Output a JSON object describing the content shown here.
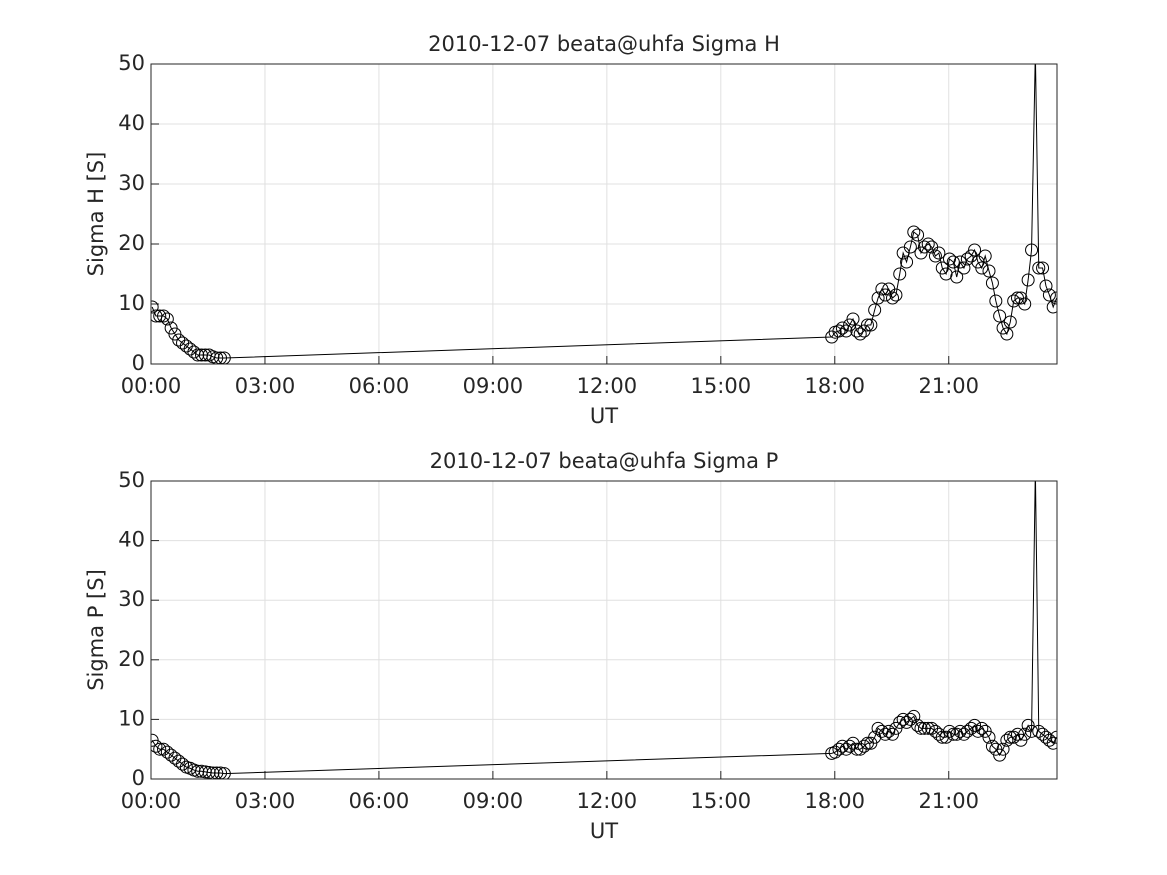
{
  "chart_data": [
    {
      "type": "line",
      "title": "2010-12-07  beata@uhfa Sigma H",
      "xlabel": "UT",
      "ylabel": "Sigma H [S]",
      "x": [
        0.03,
        0.13,
        0.23,
        0.33,
        0.43,
        0.53,
        0.63,
        0.73,
        0.83,
        0.93,
        1.03,
        1.13,
        1.23,
        1.33,
        1.43,
        1.53,
        1.63,
        1.73,
        1.83,
        1.93,
        17.92,
        18.01,
        18.11,
        18.2,
        18.3,
        18.39,
        18.48,
        18.58,
        18.67,
        18.77,
        18.86,
        18.95,
        19.05,
        19.14,
        19.24,
        19.33,
        19.42,
        19.52,
        19.61,
        19.71,
        19.8,
        19.89,
        19.99,
        20.08,
        20.18,
        20.27,
        20.36,
        20.46,
        20.55,
        20.65,
        20.74,
        20.83,
        20.93,
        21.02,
        21.12,
        21.21,
        21.3,
        21.4,
        21.49,
        21.59,
        21.68,
        21.77,
        21.87,
        21.96,
        22.06,
        22.15,
        22.24,
        22.34,
        22.43,
        22.53,
        22.62,
        22.71,
        22.81,
        22.9,
        23.0,
        23.09,
        23.18,
        23.28,
        23.37,
        23.47,
        23.56,
        23.65,
        23.75,
        23.84
      ],
      "values": [
        9.5,
        8,
        8,
        8,
        7.5,
        6,
        5,
        4,
        3.5,
        3,
        2.5,
        2,
        1.5,
        1.5,
        1.5,
        1.5,
        1.2,
        1,
        1,
        1,
        4.5,
        5.3,
        5.5,
        6,
        5.5,
        6.5,
        7.5,
        5.5,
        5,
        5.5,
        6.5,
        6.5,
        9,
        11,
        12.5,
        11.5,
        12.5,
        11,
        11.5,
        15,
        18.5,
        17,
        19.5,
        22,
        21.5,
        18.5,
        19.5,
        20,
        19.5,
        18,
        18.5,
        16,
        15,
        17.5,
        17,
        14.5,
        17,
        16,
        17.5,
        18,
        19,
        17,
        16,
        18,
        15.5,
        13.5,
        10.5,
        8,
        6,
        5,
        7,
        10.5,
        11,
        11,
        10,
        14,
        19,
        52,
        16,
        16,
        13,
        11.5,
        9.5,
        11
      ],
      "color": "#000000",
      "marker": "circle",
      "xlim": [
        0,
        23.85
      ],
      "xticks": [
        {
          "value": 0,
          "label": "00:00"
        },
        {
          "value": 3,
          "label": "03:00"
        },
        {
          "value": 6,
          "label": "06:00"
        },
        {
          "value": 9,
          "label": "09:00"
        },
        {
          "value": 12,
          "label": "12:00"
        },
        {
          "value": 15,
          "label": "15:00"
        },
        {
          "value": 18,
          "label": "18:00"
        },
        {
          "value": 21,
          "label": "21:00"
        }
      ],
      "ylim": [
        0,
        50
      ],
      "yticks": [
        0,
        10,
        20,
        30,
        40,
        50
      ],
      "grid": true
    },
    {
      "type": "line",
      "title": "2010-12-07  beata@uhfa Sigma P",
      "xlabel": "UT",
      "ylabel": "Sigma P [S]",
      "x": [
        0.03,
        0.13,
        0.23,
        0.33,
        0.43,
        0.53,
        0.63,
        0.73,
        0.83,
        0.93,
        1.03,
        1.13,
        1.23,
        1.33,
        1.43,
        1.53,
        1.63,
        1.73,
        1.83,
        1.93,
        17.92,
        18.01,
        18.11,
        18.2,
        18.3,
        18.39,
        18.48,
        18.58,
        18.67,
        18.77,
        18.86,
        18.95,
        19.05,
        19.14,
        19.24,
        19.33,
        19.42,
        19.52,
        19.61,
        19.71,
        19.8,
        19.89,
        19.99,
        20.08,
        20.18,
        20.27,
        20.36,
        20.46,
        20.55,
        20.65,
        20.74,
        20.83,
        20.93,
        21.02,
        21.12,
        21.21,
        21.3,
        21.4,
        21.49,
        21.59,
        21.68,
        21.77,
        21.87,
        21.96,
        22.06,
        22.15,
        22.24,
        22.34,
        22.43,
        22.53,
        22.62,
        22.71,
        22.81,
        22.9,
        23.0,
        23.09,
        23.18,
        23.28,
        23.37,
        23.47,
        23.56,
        23.65,
        23.75,
        23.84
      ],
      "values": [
        6.5,
        5.5,
        5,
        5,
        4.5,
        4,
        3.5,
        3,
        2.5,
        2,
        1.8,
        1.5,
        1.3,
        1.3,
        1.2,
        1.1,
        1,
        1,
        1,
        0.9,
        4.3,
        4.5,
        5,
        5.5,
        5,
        5.5,
        6,
        5,
        5,
        5.5,
        6,
        6,
        7,
        8.5,
        8,
        7.5,
        8,
        7.5,
        8.5,
        9.5,
        10,
        9.5,
        10,
        10.5,
        9,
        8.5,
        8.5,
        8.5,
        8.5,
        8,
        7.5,
        7,
        7,
        8,
        7.5,
        7.5,
        8,
        7.5,
        8,
        8.5,
        9,
        8,
        8.5,
        8,
        7,
        5.5,
        5,
        4,
        5,
        6.5,
        7,
        7,
        7.5,
        6.5,
        7.5,
        9,
        8,
        52,
        8,
        7.5,
        7,
        6.5,
        6,
        7
      ],
      "color": "#000000",
      "marker": "circle",
      "xlim": [
        0,
        23.85
      ],
      "xticks": [
        {
          "value": 0,
          "label": "00:00"
        },
        {
          "value": 3,
          "label": "03:00"
        },
        {
          "value": 6,
          "label": "06:00"
        },
        {
          "value": 9,
          "label": "09:00"
        },
        {
          "value": 12,
          "label": "12:00"
        },
        {
          "value": 15,
          "label": "15:00"
        },
        {
          "value": 18,
          "label": "18:00"
        },
        {
          "value": 21,
          "label": "21:00"
        }
      ],
      "ylim": [
        0,
        50
      ],
      "yticks": [
        0,
        10,
        20,
        30,
        40,
        50
      ],
      "grid": true
    }
  ]
}
